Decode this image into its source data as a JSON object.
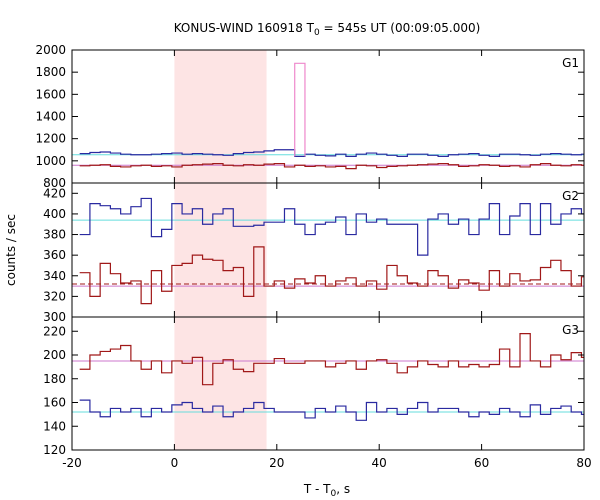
{
  "chart_data": {
    "type": "line",
    "title": "KONUS-WIND 160918 T",
    "title_sub": "0",
    "title_rest": " = 545s UT (00:09:05.000)",
    "xlabel": "T - T",
    "xlabel_sub": "0",
    "xlabel_rest": ", s",
    "ylabel": "counts / sec",
    "xlim": [
      -20,
      80
    ],
    "xticks": [
      -20,
      0,
      20,
      40,
      60,
      80
    ],
    "xtick_labels": [
      "-20",
      "0",
      "20",
      "40",
      "60",
      "80"
    ],
    "shaded_interval": [
      0,
      18
    ],
    "bin_x": [
      -17.5,
      -15.5,
      -13.5,
      -11.5,
      -9.5,
      -7.5,
      -5.5,
      -3.5,
      -1.5,
      0.5,
      2.5,
      4.5,
      6.5,
      8.5,
      10.5,
      12.5,
      14.5,
      16.5,
      18.5,
      20.5,
      22.5,
      24.5,
      26.5,
      28.5,
      30.5,
      32.5,
      34.5,
      36.5,
      38.5,
      40.5,
      42.5,
      44.5,
      46.5,
      48.5,
      50.5,
      52.5,
      54.5,
      56.5,
      58.5,
      60.5,
      62.5,
      64.5,
      66.5,
      68.5,
      70.5,
      72.5,
      74.5,
      76.5,
      78.5,
      80.5
    ],
    "panels": [
      {
        "label": "G1",
        "ylim": [
          800,
          2000
        ],
        "yticks": [
          800,
          1000,
          1200,
          1400,
          1600,
          1800,
          2000
        ],
        "ytick_labels": [
          "800",
          "1000",
          "1200",
          "1400",
          "1600",
          "1800",
          "2000"
        ],
        "series": [
          {
            "color": "#2a2aa0",
            "values": [
              1065,
              1075,
              1080,
              1070,
              1060,
              1055,
              1055,
              1060,
              1065,
              1070,
              1060,
              1065,
              1060,
              1055,
              1050,
              1065,
              1075,
              1080,
              1090,
              1100,
              1100,
              1040,
              1060,
              1050,
              1045,
              1060,
              1040,
              1060,
              1070,
              1060,
              1050,
              1040,
              1060,
              1060,
              1050,
              1040,
              1055,
              1060,
              1065,
              1050,
              1040,
              1060,
              1060,
              1055,
              1050,
              1060,
              1065,
              1060,
              1055,
              1060
            ]
          },
          {
            "color": "#a01818",
            "values": [
              955,
              960,
              965,
              950,
              945,
              955,
              960,
              950,
              955,
              945,
              960,
              965,
              970,
              975,
              960,
              955,
              965,
              960,
              970,
              975,
              945,
              960,
              950,
              955,
              945,
              950,
              930,
              960,
              955,
              940,
              950,
              955,
              960,
              965,
              970,
              975,
              965,
              950,
              955,
              965,
              960,
              950,
              955,
              945,
              965,
              975,
              960,
              955,
              965,
              960
            ]
          },
          {
            "color": "#ee88cc",
            "values": [
              null,
              null,
              null,
              null,
              null,
              null,
              null,
              null,
              null,
              null,
              null,
              null,
              null,
              null,
              null,
              null,
              null,
              null,
              null,
              null,
              null,
              1880,
              null,
              null,
              null,
              null,
              null,
              null,
              null,
              null,
              null,
              null,
              null,
              null,
              null,
              null,
              null,
              null,
              null,
              null,
              null,
              null,
              null,
              null,
              null,
              null,
              null,
              null,
              null,
              null
            ]
          }
        ],
        "ref_lines": [
          {
            "y": 1055,
            "color": "#66dddd",
            "dashed": false
          },
          {
            "y": 960,
            "color": "#cc77cc",
            "dashed": false
          }
        ]
      },
      {
        "label": "G2",
        "ylim": [
          300,
          430
        ],
        "yticks": [
          300,
          320,
          340,
          360,
          380,
          400,
          420
        ],
        "ytick_labels": [
          "300",
          "320",
          "340",
          "360",
          "380",
          "400",
          "420"
        ],
        "series": [
          {
            "color": "#2a2aa0",
            "values": [
              380,
              410,
              408,
              405,
              400,
              407,
              415,
              378,
              385,
              410,
              400,
              405,
              390,
              400,
              405,
              388,
              388,
              389,
              392,
              392,
              405,
              390,
              380,
              390,
              392,
              397,
              380,
              400,
              392,
              395,
              390,
              390,
              390,
              360,
              395,
              400,
              390,
              395,
              380,
              395,
              410,
              380,
              398,
              410,
              380,
              410,
              390,
              400,
              405,
              400
            ]
          },
          {
            "color": "#a01818",
            "values": [
              343,
              320,
              352,
              342,
              333,
              335,
              313,
              345,
              325,
              350,
              352,
              360,
              356,
              355,
              345,
              348,
              320,
              368,
              330,
              335,
              328,
              337,
              333,
              340,
              330,
              335,
              338,
              330,
              335,
              327,
              350,
              340,
              333,
              330,
              345,
              340,
              328,
              336,
              333,
              326,
              345,
              330,
              342,
              335,
              336,
              348,
              355,
              345,
              330,
              339
            ]
          }
        ],
        "ref_lines": [
          {
            "y": 394,
            "color": "#66dddd",
            "dashed": false
          },
          {
            "y": 330,
            "color": "#cc77cc",
            "dashed": false
          },
          {
            "y": 332,
            "color": "#a01818",
            "dashed": true
          }
        ]
      },
      {
        "label": "G3",
        "ylim": [
          120,
          232
        ],
        "yticks": [
          120,
          140,
          160,
          180,
          200,
          220
        ],
        "ytick_labels": [
          "120",
          "140",
          "160",
          "180",
          "200",
          "220"
        ],
        "series": [
          {
            "color": "#2a2aa0",
            "values": [
              162,
              152,
              148,
              155,
              152,
              155,
              148,
              155,
              152,
              158,
              160,
              155,
              152,
              157,
              148,
              152,
              155,
              160,
              155,
              152,
              152,
              152,
              147,
              155,
              152,
              157,
              152,
              145,
              160,
              152,
              155,
              150,
              155,
              160,
              152,
              155,
              155,
              152,
              148,
              152,
              150,
              155,
              152,
              148,
              158,
              150,
              155,
              157,
              152,
              150
            ]
          },
          {
            "color": "#a01818",
            "values": [
              188,
              200,
              203,
              205,
              208,
              195,
              188,
              195,
              185,
              195,
              193,
              198,
              175,
              193,
              196,
              188,
              186,
              193,
              193,
              197,
              193,
              193,
              195,
              195,
              190,
              193,
              195,
              188,
              195,
              196,
              193,
              185,
              190,
              195,
              192,
              190,
              195,
              190,
              192,
              190,
              192,
              205,
              190,
              218,
              195,
              190,
              200,
              196,
              202,
              198
            ]
          }
        ],
        "ref_lines": [
          {
            "y": 152,
            "color": "#66dddd",
            "dashed": false
          },
          {
            "y": 195,
            "color": "#cc77cc",
            "dashed": false
          }
        ]
      }
    ]
  }
}
